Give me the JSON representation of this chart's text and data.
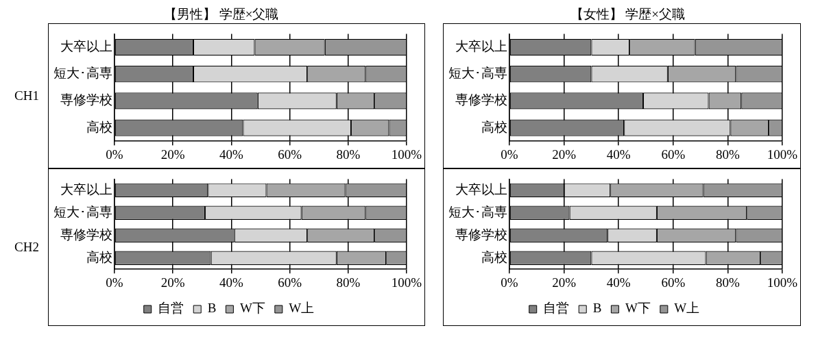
{
  "chart_data": [
    {
      "type": "bar",
      "orientation": "horizontal",
      "stacked": true,
      "title": "【男性】 学歴×父職",
      "ylabel": "CH1",
      "categories": [
        "大卒以上",
        "短大･高専",
        "専修学校",
        "高校"
      ],
      "xlim": [
        0,
        100
      ],
      "xticks": [
        {
          "value": 0,
          "label": "0%"
        },
        {
          "value": 20,
          "label": "20%"
        },
        {
          "value": 40,
          "label": "40%"
        },
        {
          "value": 60,
          "label": "60%"
        },
        {
          "value": 80,
          "label": "80%"
        },
        {
          "value": 100,
          "label": "100%"
        }
      ],
      "grid": "x",
      "legend": false,
      "series": [
        {
          "color": "#808080",
          "values": [
            27,
            27,
            49,
            44
          ]
        },
        {
          "color": "#d4d4d4",
          "values": [
            21,
            39,
            27,
            37
          ]
        },
        {
          "color": "#a6a6a6",
          "values": [
            24,
            20,
            13,
            13
          ]
        },
        {
          "color": "#959595",
          "values": [
            28,
            14,
            11,
            6
          ]
        }
      ]
    },
    {
      "type": "bar",
      "orientation": "horizontal",
      "stacked": true,
      "title": "【女性】 学歴×父職",
      "categories": [
        "大卒以上",
        "短大･高専",
        "専修学校",
        "高校"
      ],
      "xlim": [
        0,
        100
      ],
      "xticks": [
        {
          "value": 0,
          "label": "0%"
        },
        {
          "value": 20,
          "label": "20%"
        },
        {
          "value": 40,
          "label": "40%"
        },
        {
          "value": 60,
          "label": "60%"
        },
        {
          "value": 80,
          "label": "80%"
        },
        {
          "value": 100,
          "label": "100%"
        }
      ],
      "grid": "x",
      "legend": false,
      "series": [
        {
          "color": "#808080",
          "values": [
            30,
            30,
            49,
            42
          ]
        },
        {
          "color": "#d4d4d4",
          "values": [
            14,
            28,
            24,
            39
          ]
        },
        {
          "color": "#a6a6a6",
          "values": [
            24,
            25,
            12,
            14
          ]
        },
        {
          "color": "#959595",
          "values": [
            32,
            17,
            15,
            5
          ]
        }
      ]
    },
    {
      "type": "bar",
      "orientation": "horizontal",
      "stacked": true,
      "ylabel": "CH2",
      "categories": [
        "大卒以上",
        "短大･高専",
        "専修学校",
        "高校"
      ],
      "xlim": [
        0,
        100
      ],
      "xticks": [
        {
          "value": 0,
          "label": "0%"
        },
        {
          "value": 20,
          "label": "20%"
        },
        {
          "value": 40,
          "label": "40%"
        },
        {
          "value": 60,
          "label": "60%"
        },
        {
          "value": 80,
          "label": "80%"
        },
        {
          "value": 100,
          "label": "100%"
        }
      ],
      "grid": "x",
      "legend": "bottom",
      "series": [
        {
          "name": "自営",
          "color": "#808080",
          "values": [
            32,
            31,
            41,
            33
          ]
        },
        {
          "name": "B",
          "color": "#d4d4d4",
          "values": [
            20,
            33,
            25,
            43
          ]
        },
        {
          "name": "W下",
          "color": "#a6a6a6",
          "values": [
            27,
            22,
            23,
            17
          ]
        },
        {
          "name": "W上",
          "color": "#959595",
          "values": [
            21,
            14,
            11,
            7
          ]
        }
      ]
    },
    {
      "type": "bar",
      "orientation": "horizontal",
      "stacked": true,
      "categories": [
        "大卒以上",
        "短大･高専",
        "専修学校",
        "高校"
      ],
      "xlim": [
        0,
        100
      ],
      "xticks": [
        {
          "value": 0,
          "label": "0%"
        },
        {
          "value": 20,
          "label": "20%"
        },
        {
          "value": 40,
          "label": "40%"
        },
        {
          "value": 60,
          "label": "60%"
        },
        {
          "value": 80,
          "label": "80%"
        },
        {
          "value": 100,
          "label": "100%"
        }
      ],
      "grid": "x",
      "legend": "bottom",
      "series": [
        {
          "name": "自営",
          "color": "#808080",
          "values": [
            20,
            22,
            36,
            30
          ]
        },
        {
          "name": "B",
          "color": "#d4d4d4",
          "values": [
            17,
            32,
            18,
            42
          ]
        },
        {
          "name": "W下",
          "color": "#a6a6a6",
          "values": [
            34,
            33,
            29,
            20
          ]
        },
        {
          "name": "W上",
          "color": "#959595",
          "values": [
            29,
            13,
            17,
            8
          ]
        }
      ]
    }
  ]
}
